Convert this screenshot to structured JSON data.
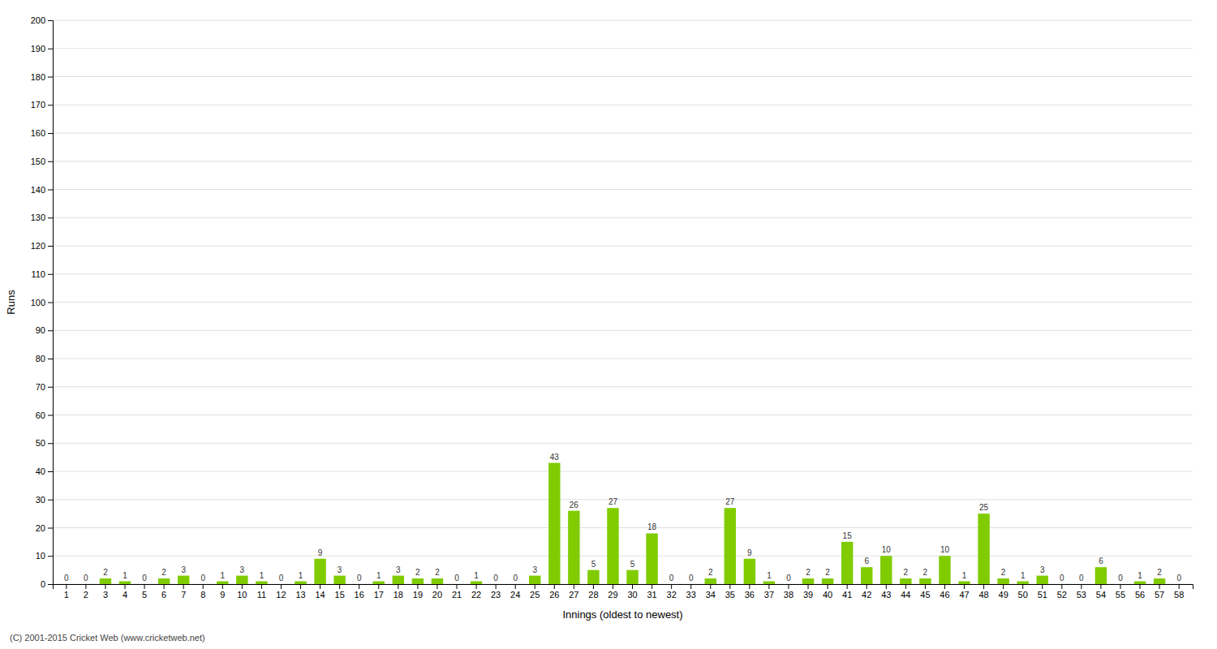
{
  "chart_data": {
    "type": "bar",
    "xlabel": "Innings (oldest to newest)",
    "ylabel": "Runs",
    "categories": [
      "1",
      "2",
      "3",
      "4",
      "5",
      "6",
      "7",
      "8",
      "9",
      "10",
      "11",
      "12",
      "13",
      "14",
      "15",
      "16",
      "17",
      "18",
      "19",
      "20",
      "21",
      "22",
      "23",
      "24",
      "25",
      "26",
      "27",
      "28",
      "29",
      "30",
      "31",
      "32",
      "33",
      "34",
      "35",
      "36",
      "37",
      "38",
      "39",
      "40",
      "41",
      "42",
      "43",
      "44",
      "45",
      "46",
      "47",
      "48",
      "49",
      "50",
      "51",
      "52",
      "53",
      "54",
      "55",
      "56",
      "57",
      "58"
    ],
    "values": [
      0,
      0,
      2,
      1,
      0,
      2,
      3,
      0,
      1,
      3,
      1,
      0,
      1,
      9,
      3,
      0,
      1,
      3,
      2,
      2,
      0,
      1,
      0,
      0,
      3,
      43,
      26,
      5,
      27,
      5,
      18,
      0,
      0,
      2,
      27,
      9,
      1,
      0,
      2,
      2,
      15,
      6,
      10,
      2,
      2,
      10,
      1,
      25,
      2,
      1,
      3,
      0,
      0,
      6,
      0,
      1,
      2,
      0
    ],
    "color": "#80cc00",
    "ylim": [
      0,
      200
    ],
    "yticks": [
      0,
      10,
      20,
      30,
      40,
      50,
      60,
      70,
      80,
      90,
      100,
      110,
      120,
      130,
      140,
      150,
      160,
      170,
      180,
      190,
      200
    ],
    "grid": true,
    "data_labels": true,
    "annotations": [
      "(C) 2001-2015 Cricket Web (www.cricketweb.net)"
    ]
  }
}
